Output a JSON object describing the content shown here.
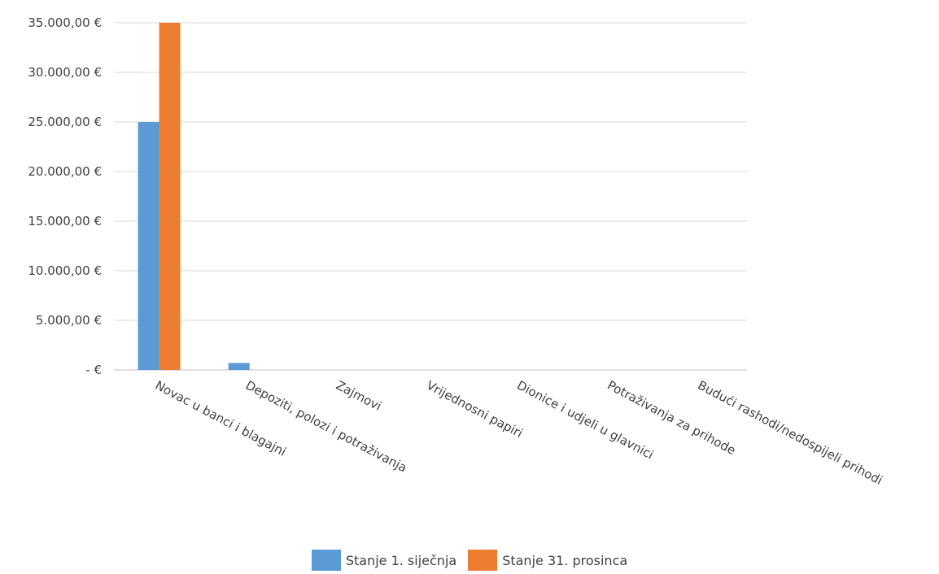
{
  "colors": {
    "series1": "#5b9bd5",
    "series2": "#ed7d31",
    "grid": "#d9d9d9",
    "axis": "#bfbfbf",
    "text": "#404040"
  },
  "chart_data": {
    "type": "bar",
    "title": "",
    "xlabel": "",
    "ylabel": "",
    "ylim": [
      0,
      35000
    ],
    "grid": true,
    "legend_position": "bottom",
    "yticks": [
      0,
      5000,
      10000,
      15000,
      20000,
      25000,
      30000,
      35000
    ],
    "ytick_labels": [
      "-  €",
      "5.000,00 €",
      "10.000,00 €",
      "15.000,00 €",
      "20.000,00 €",
      "25.000,00 €",
      "30.000,00 €",
      "35.000,00 €"
    ],
    "categories": [
      "Novac u banci i blagajni",
      "Depoziti, polozi i potraživanja",
      "Zajmovi",
      "Vrijednosni papiri",
      "Dionice i udjeli u glavnici",
      "Potraživanja za prihode",
      "Budući rashodi/nedospijeli prihodi"
    ],
    "series": [
      {
        "name": "Stanje 1. siječnja",
        "color": "#5b9bd5",
        "values": [
          25000,
          700,
          0,
          0,
          0,
          0,
          0
        ]
      },
      {
        "name": "Stanje 31. prosinca",
        "color": "#ed7d31",
        "values": [
          35000,
          0,
          0,
          0,
          0,
          0,
          0
        ]
      }
    ]
  }
}
